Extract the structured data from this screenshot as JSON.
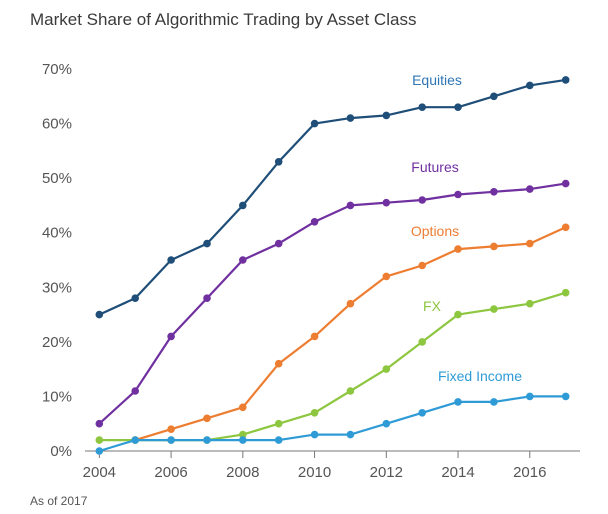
{
  "chart_data": {
    "type": "line",
    "title": "Market Share of Algorithmic Trading by Asset Class",
    "footnote": "As of 2017",
    "xlabel": "",
    "ylabel": "",
    "x": [
      2004,
      2005,
      2006,
      2007,
      2008,
      2009,
      2010,
      2011,
      2012,
      2013,
      2014,
      2015,
      2016,
      2017
    ],
    "x_ticks": [
      2004,
      2006,
      2008,
      2010,
      2012,
      2014,
      2016
    ],
    "x_tick_labels": [
      "2004",
      "2006",
      "2008",
      "2010",
      "2012",
      "2014",
      "2016"
    ],
    "y_ticks": [
      0,
      10,
      20,
      30,
      40,
      50,
      60,
      70
    ],
    "y_tick_labels": [
      "0%",
      "10%",
      "20%",
      "30%",
      "40%",
      "50%",
      "60%",
      "70%"
    ],
    "xlim": [
      2003.6,
      2017.4
    ],
    "ylim": [
      0,
      70
    ],
    "grid": false,
    "legend": "inline labels near line ends",
    "series": [
      {
        "name": "Equities",
        "color": "#1f4e79",
        "label_color": "#2e75b6",
        "values": [
          25,
          28,
          35,
          38,
          45,
          53,
          60,
          61,
          61.5,
          63,
          63,
          65,
          67,
          68
        ]
      },
      {
        "name": "Futures",
        "color": "#7030a0",
        "label_color": "#7030a0",
        "values": [
          5,
          11,
          21,
          28,
          35,
          38,
          42,
          45,
          45.5,
          46,
          47,
          47.5,
          48,
          49
        ]
      },
      {
        "name": "Options",
        "color": "#ed7d31",
        "label_color": "#ed7d31",
        "values": [
          null,
          2,
          4,
          6,
          8,
          16,
          21,
          27,
          32,
          34,
          37,
          37.5,
          38,
          41
        ]
      },
      {
        "name": "FX",
        "color": "#8dc63f",
        "label_color": "#8dc63f",
        "values": [
          2,
          2,
          2,
          2,
          3,
          5,
          7,
          11,
          15,
          20,
          25,
          26,
          27,
          29
        ]
      },
      {
        "name": "Fixed Income",
        "color": "#2e9bd6",
        "label_color": "#2e9bd6",
        "values": [
          0,
          2,
          2,
          2,
          2,
          2,
          3,
          3,
          5,
          7,
          9,
          9,
          10,
          10
        ]
      }
    ]
  }
}
